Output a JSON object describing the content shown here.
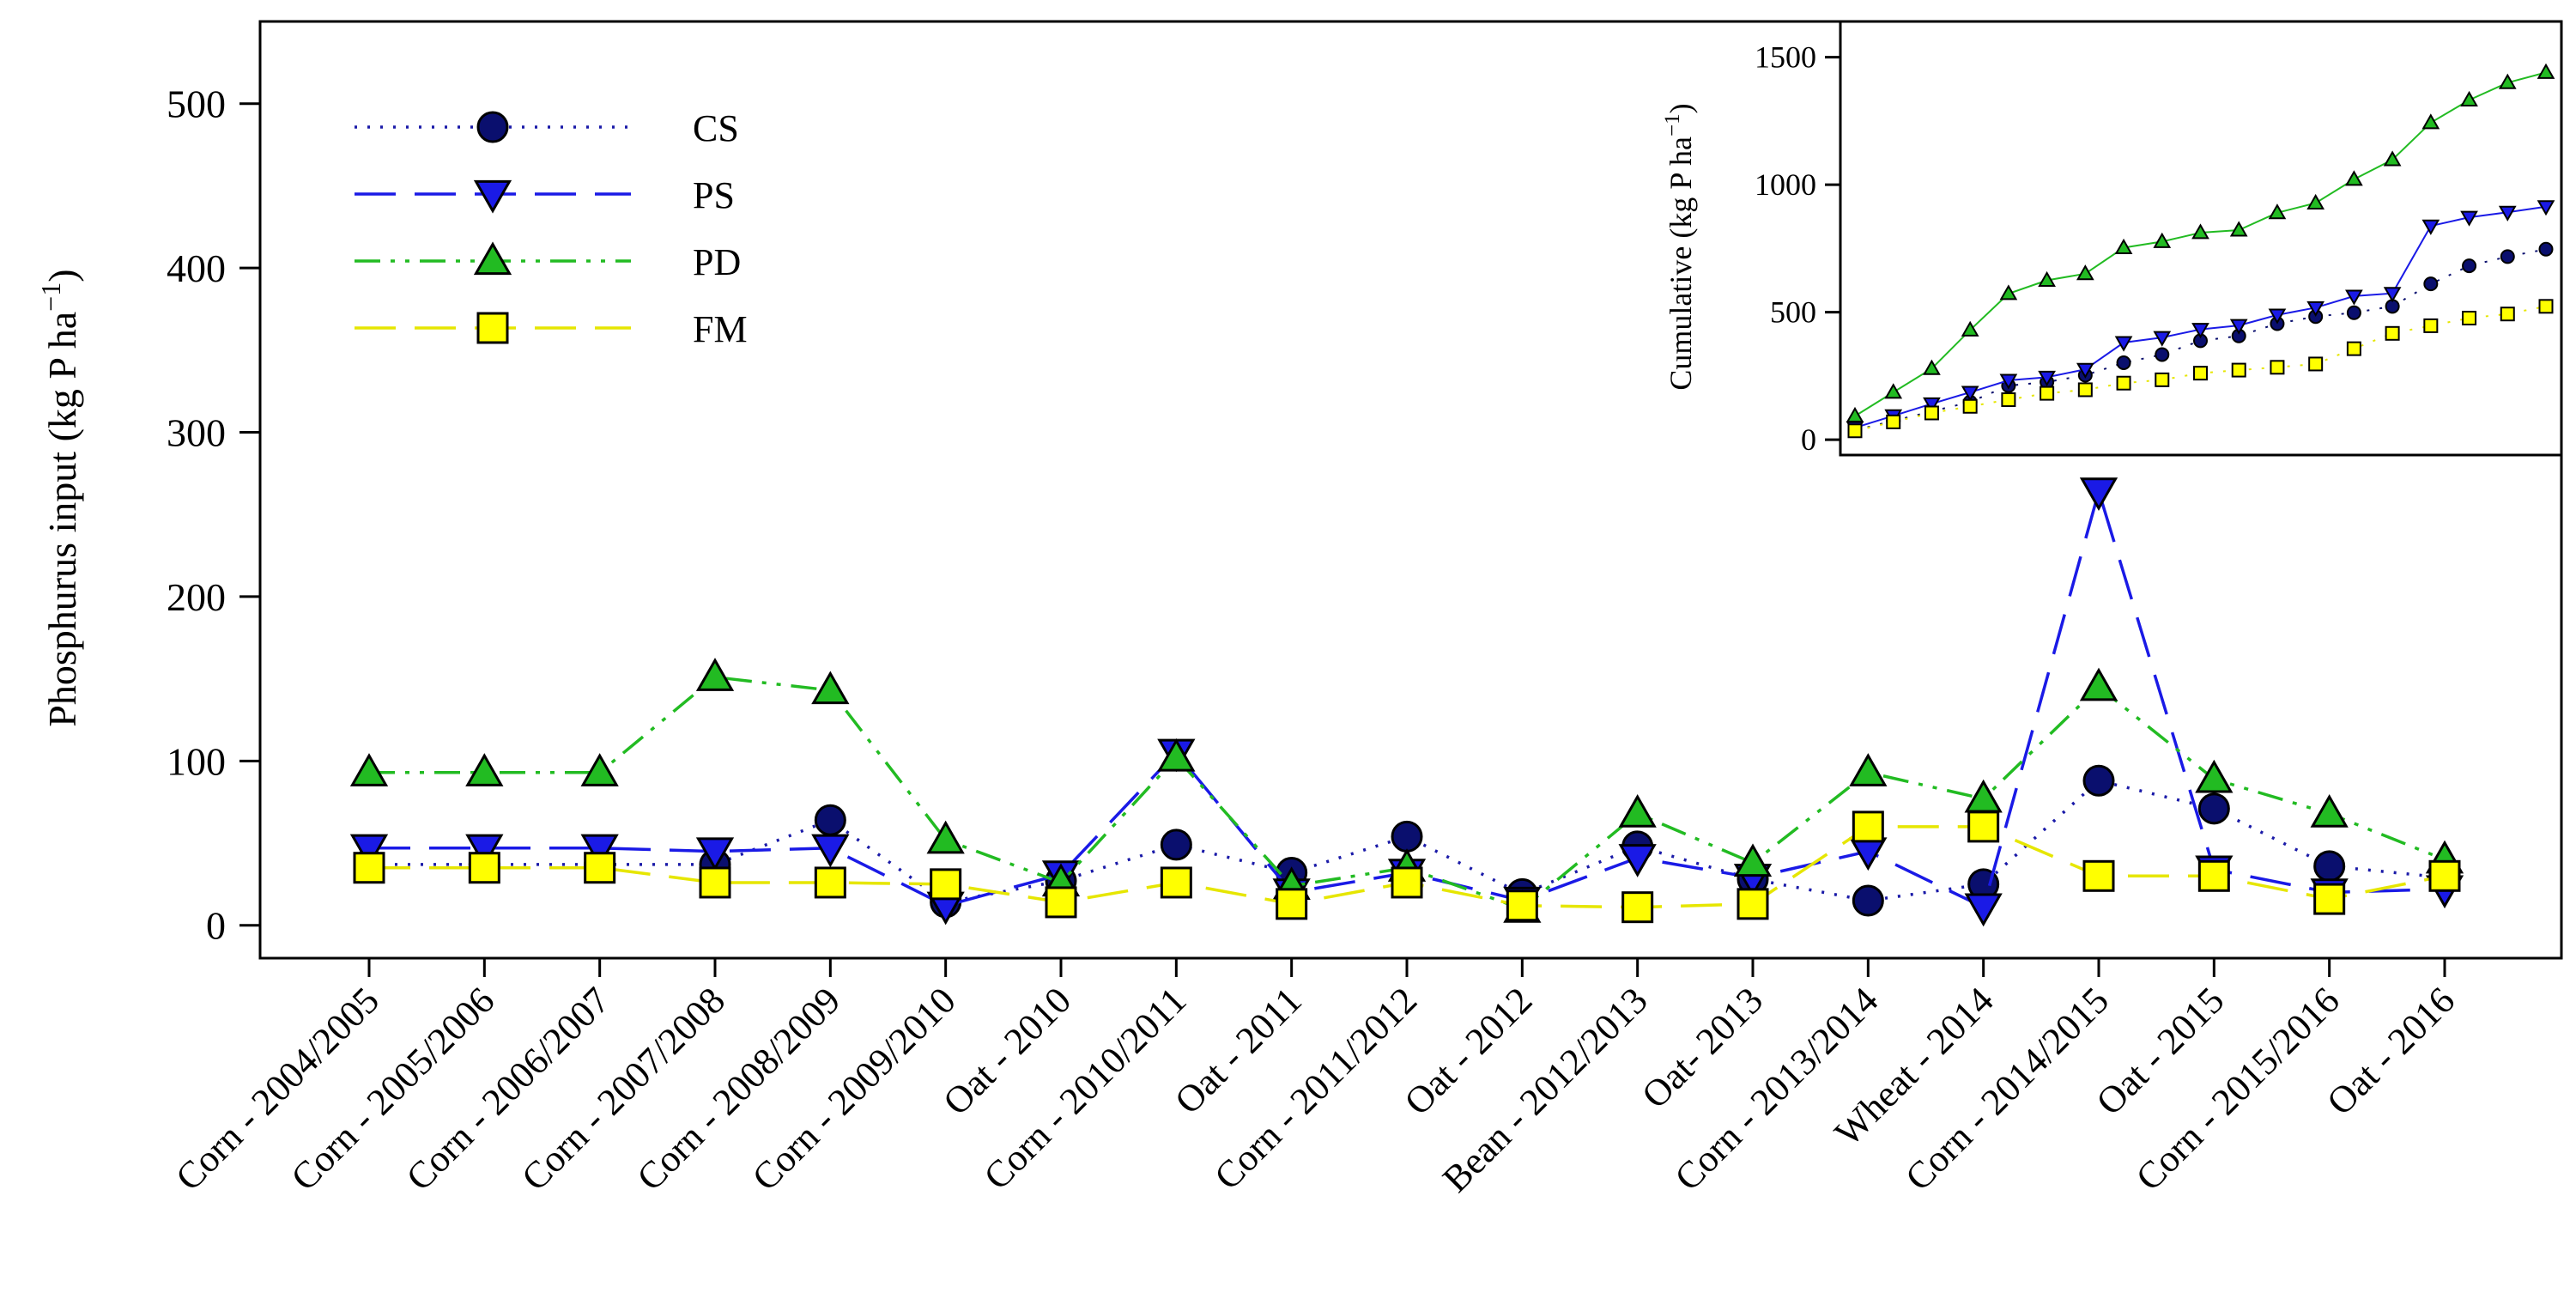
{
  "chart_data": [
    {
      "type": "line",
      "ylabel": "Phosphurus input (kg P ha",
      "ylabel_sup": "−1",
      "ylabel_close": ")",
      "ylim": [
        -20,
        550
      ],
      "yticks": [
        0,
        100,
        200,
        300,
        400,
        500
      ],
      "categories": [
        "Corn - 2004/2005",
        "Corn - 2005/2006",
        "Corn - 2006/2007",
        "Corn - 2007/2008",
        "Corn - 2008/2009",
        "Corn - 2009/2010",
        "Oat - 2010",
        "Corn - 2010/2011",
        "Oat - 2011",
        "Corn - 2011/2012",
        "Oat - 2012",
        "Bean - 2012/2013",
        "Oat- 2013",
        "Corn - 2013/2014",
        "Wheat - 2014",
        "Corn - 2014/2015",
        "Oat - 2015",
        "Corn - 2015/2016",
        "Oat - 2016"
      ],
      "legend_position": "top-left",
      "grid": false,
      "series": [
        {
          "name": "CS",
          "color": "#0a0f6e",
          "line_color": "#1a1aa8",
          "marker": "circle",
          "dash": "dotted",
          "values": [
            37,
            37,
            37,
            37,
            64,
            14,
            27,
            49,
            32,
            54,
            19,
            48,
            28,
            15,
            25,
            88,
            71,
            36,
            29
          ]
        },
        {
          "name": "PS",
          "color": "#1a1ae6",
          "line_color": "#1a1ae6",
          "marker": "triangle-down",
          "dash": "long-dash",
          "values": [
            47,
            47,
            47,
            45,
            47,
            12,
            31,
            105,
            20,
            32,
            15,
            41,
            29,
            45,
            11,
            264,
            34,
            20,
            22
          ]
        },
        {
          "name": "PD",
          "color": "#22bb22",
          "line_color": "#22bb22",
          "marker": "triangle-up",
          "dash": "dash-dot-dot",
          "values": [
            93,
            93,
            93,
            151,
            143,
            52,
            26,
            102,
            24,
            35,
            10,
            68,
            38,
            93,
            77,
            145,
            89,
            68,
            40
          ]
        },
        {
          "name": "FM",
          "color": "#ffff00",
          "line_color": "#e6e600",
          "marker": "square",
          "dash": "long-dash",
          "values": [
            35,
            35,
            35,
            26,
            26,
            25,
            14,
            26,
            13,
            26,
            12,
            11,
            13,
            60,
            60,
            30,
            30,
            16,
            30
          ]
        }
      ]
    },
    {
      "type": "line",
      "inset": true,
      "ylabel": "Cumulative (kg P ha",
      "ylabel_sup": "−1",
      "ylabel_close": ")",
      "ylim": [
        -60,
        1640
      ],
      "yticks": [
        0,
        500,
        1000,
        1500
      ],
      "series": [
        {
          "name": "CS",
          "color": "#0a0f6e",
          "line_color": "#0a0f6e",
          "marker": "circle",
          "dash": "dotted",
          "values": [
            37,
            74,
            111,
            148,
            212,
            226,
            253,
            302,
            334,
            388,
            407,
            455,
            483,
            498,
            523,
            611,
            682,
            718,
            747
          ]
        },
        {
          "name": "PS",
          "color": "#1a1ae6",
          "line_color": "#1a1ae6",
          "marker": "triangle-down",
          "dash": "solid",
          "values": [
            47,
            94,
            141,
            186,
            233,
            245,
            276,
            381,
            401,
            433,
            448,
            489,
            518,
            563,
            574,
            838,
            872,
            892,
            914
          ]
        },
        {
          "name": "PD",
          "color": "#22bb22",
          "line_color": "#22bb22",
          "marker": "triangle-up",
          "dash": "solid",
          "values": [
            93,
            186,
            279,
            430,
            573,
            625,
            651,
            753,
            777,
            812,
            822,
            890,
            928,
            1021,
            1098,
            1243,
            1332,
            1400,
            1440
          ]
        },
        {
          "name": "FM",
          "color": "#ffff00",
          "line_color": "#e6e600",
          "marker": "square",
          "dash": "dotted",
          "values": [
            35,
            70,
            105,
            131,
            157,
            182,
            196,
            222,
            235,
            261,
            273,
            284,
            297,
            357,
            417,
            447,
            477,
            493,
            523
          ]
        }
      ]
    }
  ]
}
